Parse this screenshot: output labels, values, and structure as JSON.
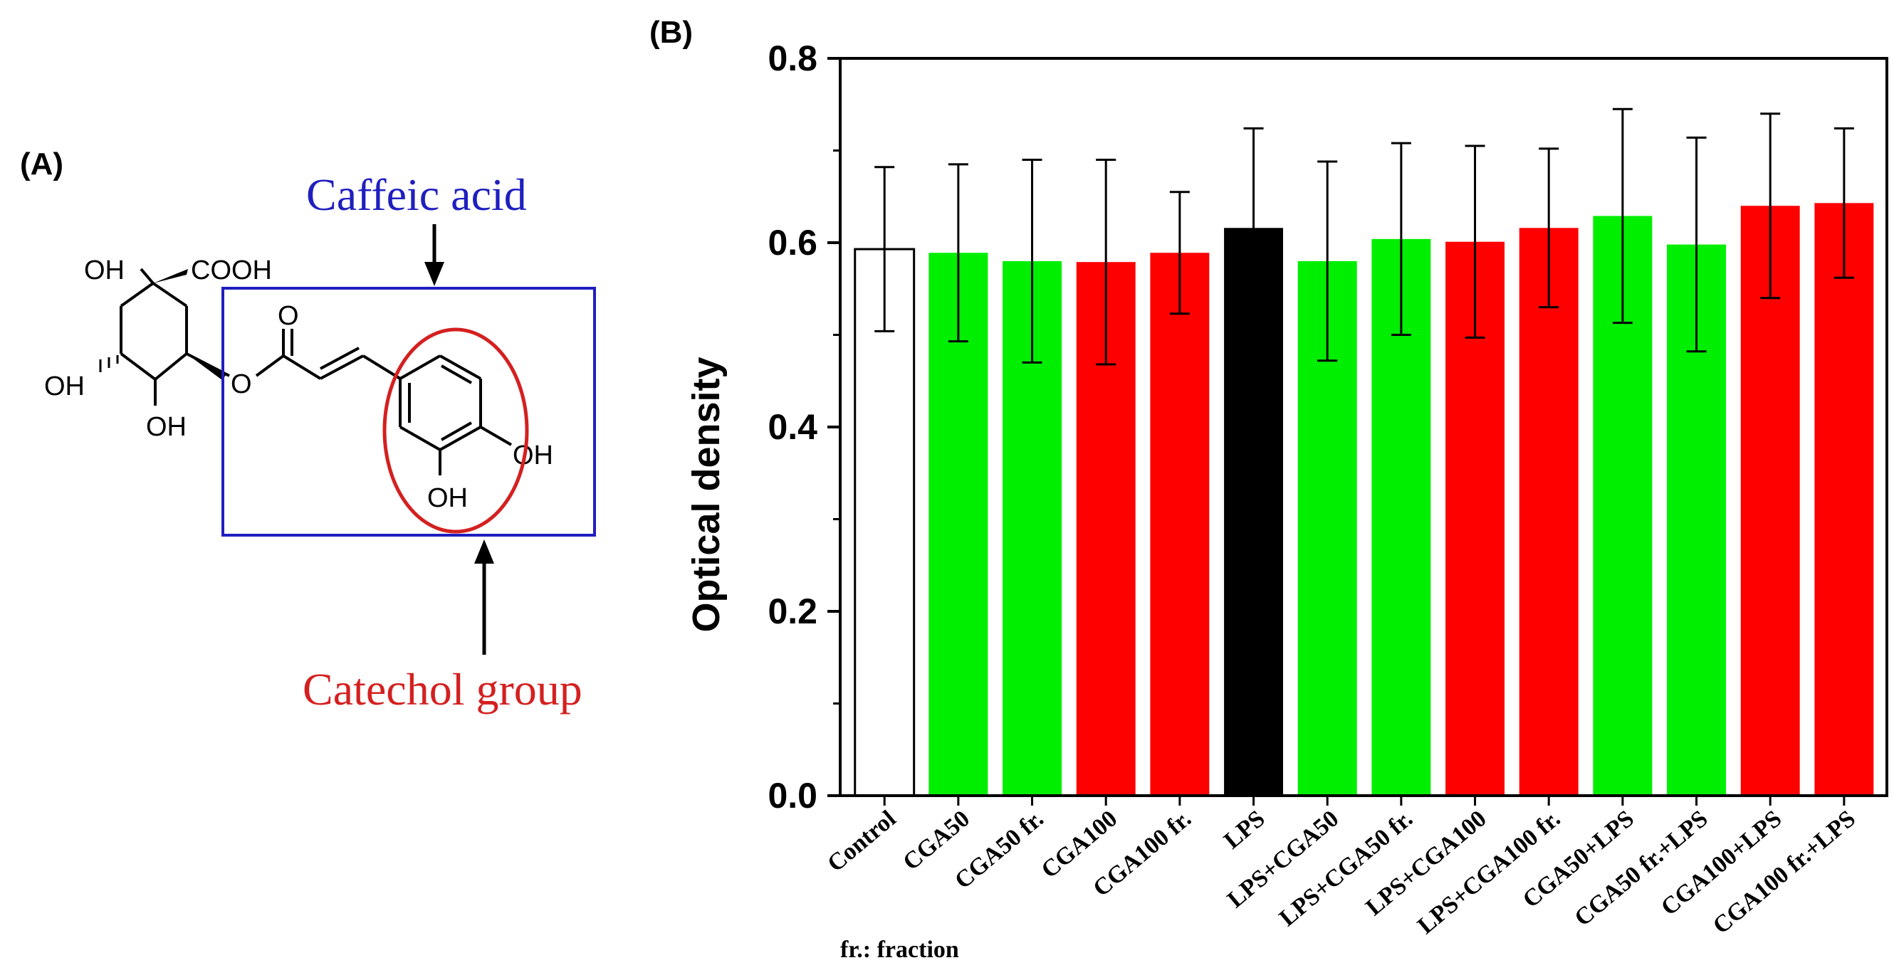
{
  "panel_a": {
    "label": "(A)",
    "caffeic_label": "Caffeic acid",
    "catechol_label": "Catechol group",
    "atoms": {
      "oh_top": "OH",
      "cooh": "COOH",
      "oh_left": "OH",
      "oh_bottom": "OH",
      "ester_o": "O",
      "carbonyl_o": "O",
      "oh_ring_right": "OH",
      "oh_ring_bottom": "OH"
    },
    "colors": {
      "box": "#1f1fbf",
      "circle": "#d42020",
      "caffeic_text": "#1f1fbf",
      "catechol_text": "#d42020"
    }
  },
  "panel_b": {
    "label": "(B)"
  },
  "chart_data": {
    "type": "bar",
    "title": "",
    "xlabel": "",
    "ylabel": "Optical density",
    "ylim": [
      0,
      0.8
    ],
    "yticks": [
      0.0,
      0.2,
      0.4,
      0.6,
      0.8
    ],
    "ytick_labels": [
      "0.0",
      "0.2",
      "0.4",
      "0.6",
      "0.8"
    ],
    "categories": [
      "Control",
      "CGA50",
      "CGA50 fr.",
      "CGA100",
      "CGA100 fr.",
      "LPS",
      "LPS+CGA50",
      "LPS+CGA50 fr.",
      "LPS+CGA100",
      "LPS+CGA100 fr.",
      "CGA50+LPS",
      "CGA50 fr.+LPS",
      "CGA100+LPS",
      "CGA100 fr.+LPS"
    ],
    "values": [
      0.593,
      0.589,
      0.58,
      0.579,
      0.589,
      0.616,
      0.58,
      0.604,
      0.601,
      0.616,
      0.629,
      0.598,
      0.64,
      0.643
    ],
    "errors": [
      0.089,
      0.096,
      0.11,
      0.111,
      0.066,
      0.108,
      0.108,
      0.104,
      0.104,
      0.086,
      0.116,
      0.116,
      0.1,
      0.081
    ],
    "colors": [
      "#ffffff",
      "#00ee00",
      "#00ee00",
      "#ff0000",
      "#ff0000",
      "#000000",
      "#00ee00",
      "#00ee00",
      "#ff0000",
      "#ff0000",
      "#00ee00",
      "#00ee00",
      "#ff0000",
      "#ff0000"
    ],
    "grid": false,
    "footnote": "fr.: fraction"
  }
}
